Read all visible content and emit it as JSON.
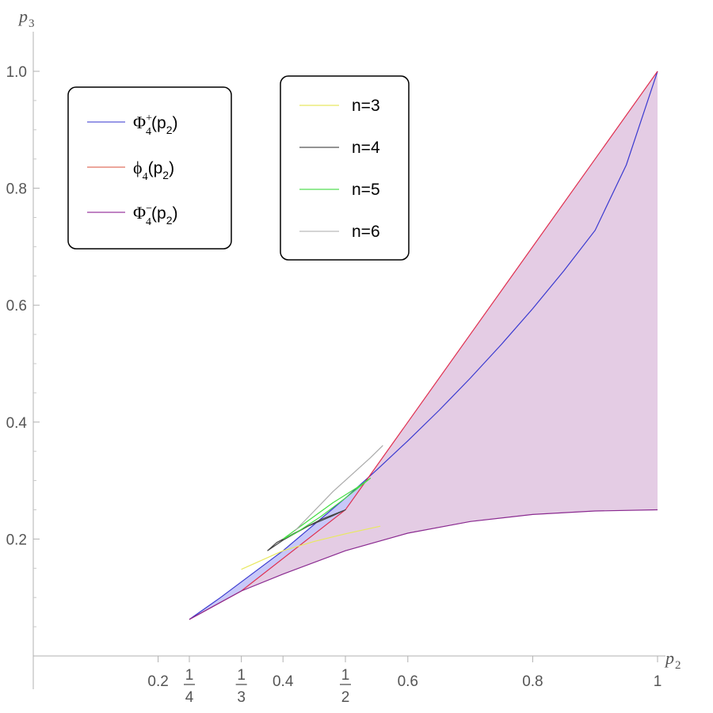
{
  "chart_data": {
    "type": "area",
    "xlabel": "p",
    "xlabel_sub": "2",
    "ylabel": "p",
    "ylabel_sub": "3",
    "xlim": [
      0,
      1
    ],
    "ylim": [
      0,
      1
    ],
    "x_ticks": [
      {
        "value": 0.2,
        "label": "0.2"
      },
      {
        "value": 0.25,
        "num": "1",
        "den": "4"
      },
      {
        "value": 0.3333,
        "num": "1",
        "den": "3"
      },
      {
        "value": 0.4,
        "label": "0.4"
      },
      {
        "value": 0.5,
        "num": "1",
        "den": "2"
      },
      {
        "value": 0.6,
        "label": "0.6"
      },
      {
        "value": 0.8,
        "label": "0.8"
      },
      {
        "value": 1.0,
        "label": "1"
      }
    ],
    "y_ticks": [
      {
        "value": 0.2,
        "label": "0.2"
      },
      {
        "value": 0.4,
        "label": "0.4"
      },
      {
        "value": 0.6,
        "label": "0.6"
      },
      {
        "value": 0.8,
        "label": "0.8"
      },
      {
        "value": 1.0,
        "label": "1.0"
      }
    ],
    "legend_boundaries": [
      {
        "symbol": "Φ",
        "sub": "4",
        "sup": "+",
        "arg": "(p",
        "argsub": "2",
        "close": ")",
        "color": "#5b5bd6"
      },
      {
        "symbol": "ϕ",
        "sub": "4",
        "sup": "",
        "arg": "(p",
        "argsub": "2",
        "close": ")",
        "color": "#e07060"
      },
      {
        "symbol": "Φ",
        "sub": "4",
        "sup": "−",
        "arg": "(p",
        "argsub": "2",
        "close": ")",
        "color": "#9a3aa0"
      }
    ],
    "legend_samples": [
      {
        "label": "n=3",
        "color": "#e8e860"
      },
      {
        "label": "n=4",
        "color": "#555555"
      },
      {
        "label": "n=5",
        "color": "#55dd55"
      },
      {
        "label": "n=6",
        "color": "#bbbbbb"
      }
    ],
    "series": [
      {
        "name": "Φ4+(p2)",
        "color": "#3a3ad0",
        "x": [
          0.25,
          0.3,
          0.35,
          0.4,
          0.45,
          0.5,
          0.55,
          0.6,
          0.65,
          0.7,
          0.75,
          0.8,
          0.85,
          0.9,
          0.95,
          1.0
        ],
        "y": [
          0.0625,
          0.1,
          0.14,
          0.18,
          0.225,
          0.27,
          0.318,
          0.368,
          0.42,
          0.475,
          0.533,
          0.594,
          0.659,
          0.728,
          0.84,
          1.0
        ]
      },
      {
        "name": "ϕ4(p2)",
        "color": "#e03050",
        "x": [
          0.25,
          0.3333,
          0.5,
          1.0
        ],
        "y": [
          0.0625,
          0.1111,
          0.25,
          1.0
        ]
      },
      {
        "name": "Φ4−(p2)",
        "color": "#8a2a90",
        "x": [
          0.25,
          0.3333,
          0.4,
          0.5,
          0.6,
          0.7,
          0.8,
          0.9,
          1.0
        ],
        "y": [
          0.0625,
          0.1111,
          0.14,
          0.18,
          0.21,
          0.23,
          0.242,
          0.248,
          0.25
        ]
      }
    ],
    "sample_curves": [
      {
        "name": "n=3",
        "color": "#e8e860",
        "x": [
          0.3333,
          0.4,
          0.45,
          0.5,
          0.556
        ],
        "y": [
          0.1481,
          0.18,
          0.196,
          0.209,
          0.222
        ]
      },
      {
        "name": "n=4",
        "color": "#444444",
        "x": [
          0.375,
          0.4,
          0.44,
          0.48,
          0.5,
          0.46,
          0.42,
          0.39,
          0.375
        ],
        "y": [
          0.1798,
          0.198,
          0.222,
          0.24,
          0.25,
          0.233,
          0.211,
          0.194,
          0.1798
        ]
      },
      {
        "name": "n=5",
        "color": "#44dd44",
        "x": [
          0.4,
          0.44,
          0.48,
          0.52,
          0.54,
          0.5,
          0.46,
          0.42,
          0.4
        ],
        "y": [
          0.2,
          0.231,
          0.262,
          0.289,
          0.304,
          0.27,
          0.238,
          0.21,
          0.2
        ]
      },
      {
        "name": "n=6",
        "color": "#aaaaaa",
        "x": [
          0.42,
          0.45,
          0.48,
          0.51,
          0.54,
          0.56
        ],
        "y": [
          0.215,
          0.248,
          0.281,
          0.31,
          0.339,
          0.36
        ]
      }
    ]
  }
}
